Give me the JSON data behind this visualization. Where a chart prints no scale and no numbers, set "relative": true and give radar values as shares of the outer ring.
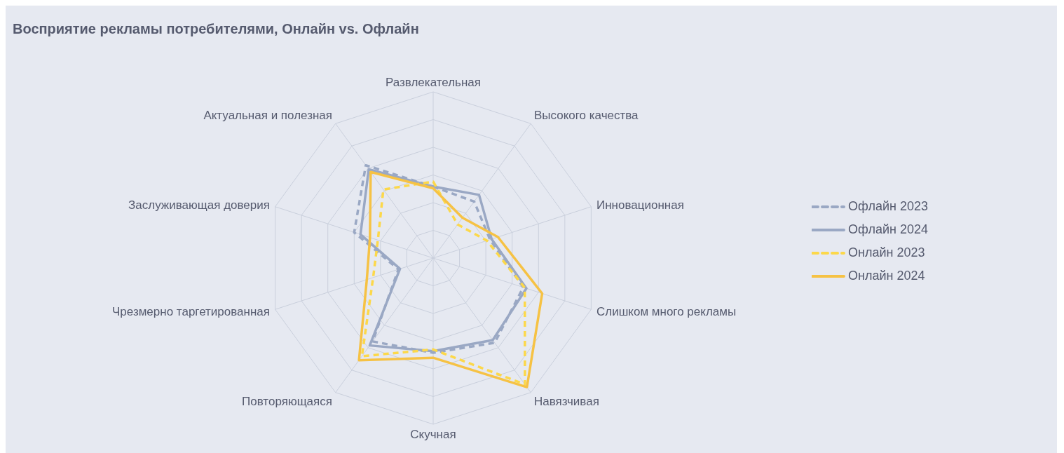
{
  "chart_data": {
    "type": "radar",
    "title": "Восприятие рекламы потребителями, Онлайн vs. Офлайн",
    "relative": true,
    "categories": [
      "Развлекательная",
      "Высокого качества",
      "Инновационная",
      "Слишком много рекламы",
      "Навязчивая",
      "Скучная",
      "Повторяющаяся",
      "Чрезмерно таргетированная",
      "Заслуживающая доверия",
      "Актуальная и полезная"
    ],
    "series": [
      {
        "name": "Офлайн 2023",
        "color": "#9aa8c4",
        "line_style": "dashed",
        "values": [
          0.43,
          0.42,
          0.36,
          0.57,
          0.63,
          0.57,
          0.62,
          0.22,
          0.5,
          0.69
        ]
      },
      {
        "name": "Офлайн 2024",
        "color": "#9aa8c4",
        "line_style": "solid",
        "values": [
          0.43,
          0.47,
          0.37,
          0.59,
          0.61,
          0.56,
          0.65,
          0.21,
          0.46,
          0.66
        ]
      },
      {
        "name": "Онлайн 2023",
        "color": "#fcd84a",
        "line_style": "dashed",
        "values": [
          0.46,
          0.25,
          0.34,
          0.58,
          0.94,
          0.55,
          0.73,
          0.38,
          0.35,
          0.51
        ]
      },
      {
        "name": "Онлайн 2024",
        "color": "#f6c244",
        "line_style": "solid",
        "values": [
          0.42,
          0.3,
          0.41,
          0.69,
          0.96,
          0.6,
          0.76,
          0.42,
          0.4,
          0.64
        ]
      }
    ],
    "grid": true,
    "legend": "right",
    "marker": "none"
  }
}
